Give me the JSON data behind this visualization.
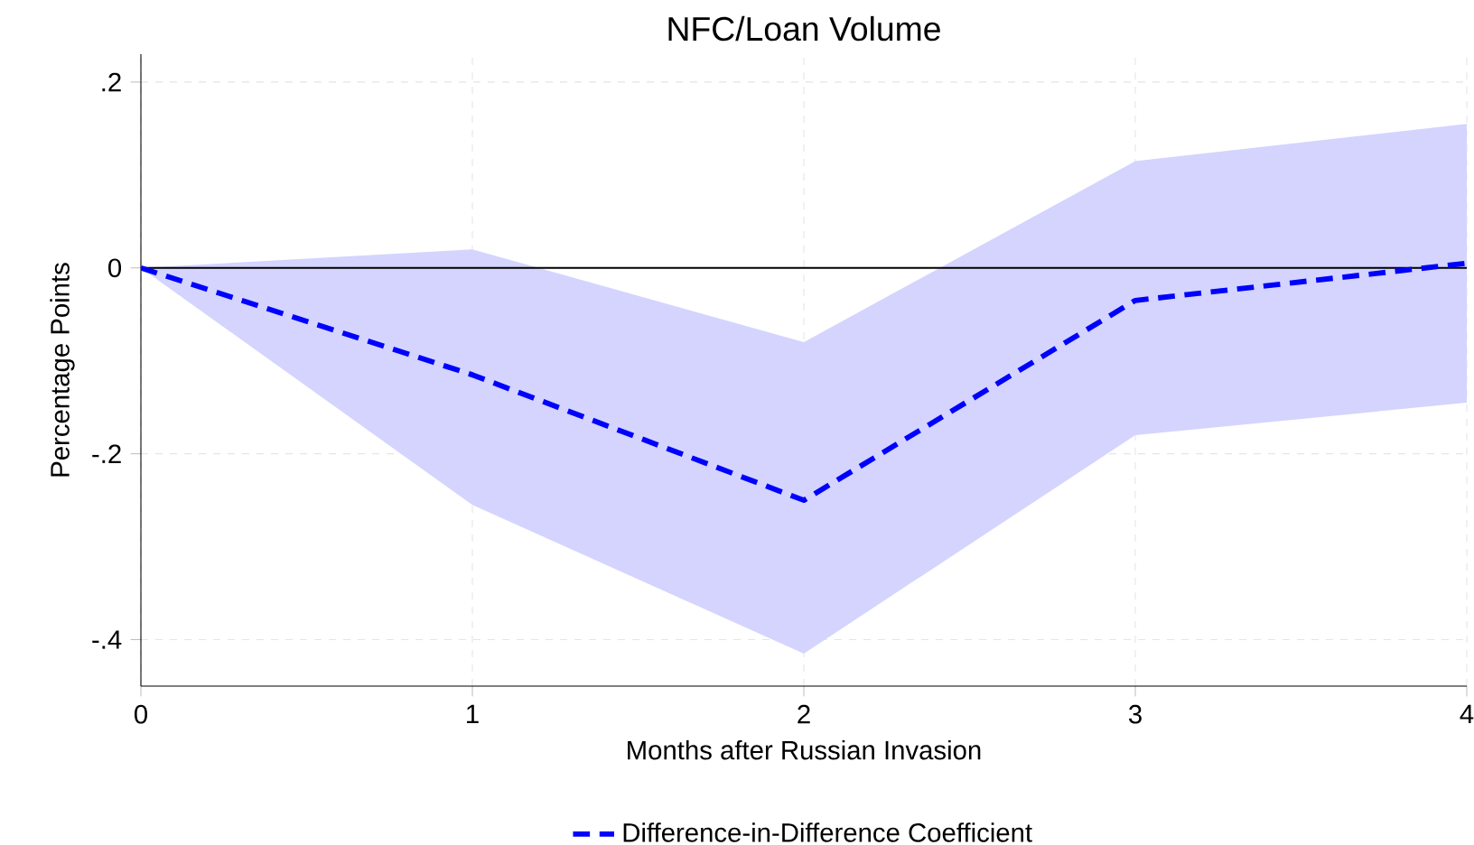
{
  "chart_data": {
    "type": "line",
    "title": "NFC/Loan Volume",
    "xlabel": "Months after Russian Invasion",
    "ylabel": "Percentage Points",
    "x": [
      0,
      1,
      2,
      3,
      4
    ],
    "series": [
      {
        "name": "Difference-in-Difference Coefficient",
        "color": "#0000ff",
        "values": [
          0,
          -0.115,
          -0.25,
          -0.035,
          0.005
        ],
        "lower": [
          0,
          -0.255,
          -0.415,
          -0.18,
          -0.145
        ],
        "upper": [
          0,
          0.02,
          -0.08,
          0.115,
          0.155
        ],
        "line_style": "dashed"
      }
    ],
    "xlim": [
      0,
      4
    ],
    "ylim": [
      -0.45,
      0.23
    ],
    "xticks": [
      0,
      1,
      2,
      3,
      4
    ],
    "yticks": [
      {
        "value": -0.4,
        "label": "-.4"
      },
      {
        "value": -0.2,
        "label": "-.2"
      },
      {
        "value": 0,
        "label": "0"
      },
      {
        "value": 0.2,
        "label": ".2"
      }
    ],
    "ref_lines": [
      {
        "axis": "y",
        "value": 0,
        "color": "#000000"
      }
    ],
    "grid": true,
    "legend": "bottom",
    "marker": "none"
  }
}
